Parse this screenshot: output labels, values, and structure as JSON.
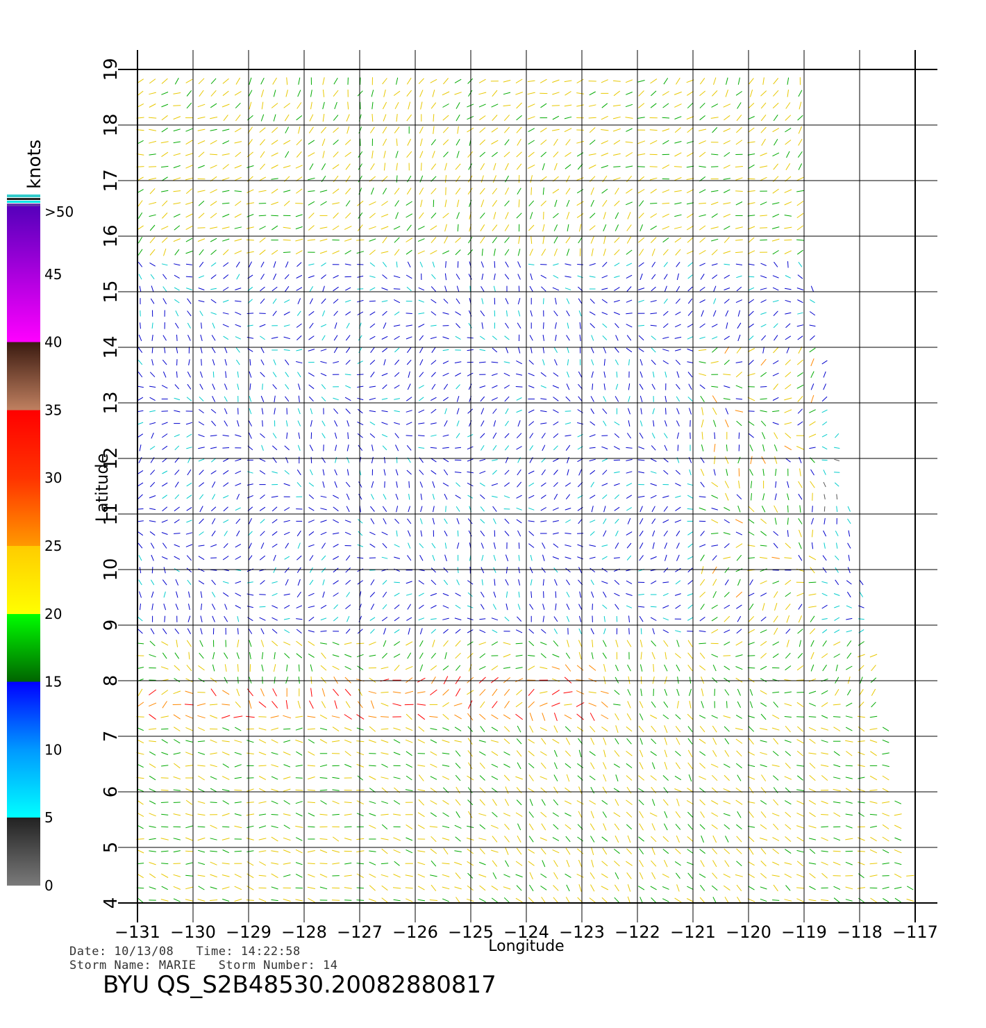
{
  "chart_data": {
    "type": "wind-vector-map",
    "xlabel": "Longitude",
    "ylabel": "Latitude",
    "xlim": [
      -131,
      -117
    ],
    "ylim": [
      4,
      19
    ],
    "x_ticks": [
      "-131",
      "-130",
      "-129",
      "-128",
      "-127",
      "-126",
      "-125",
      "-124",
      "-123",
      "-122",
      "-121",
      "-120",
      "-119",
      "-118",
      "-117"
    ],
    "y_ticks": [
      "4",
      "5",
      "6",
      "7",
      "8",
      "9",
      "10",
      "11",
      "12",
      "13",
      "14",
      "15",
      "16",
      "17",
      "18",
      "19"
    ],
    "grid": true,
    "colorbar": {
      "title": "knots",
      "top_label": ">50",
      "labels": [
        "0",
        "5",
        "10",
        "15",
        "20",
        "25",
        "30",
        "35",
        "40",
        "45"
      ],
      "bands": [
        {
          "from": 0,
          "to": 5,
          "colors": [
            "#7a7a7a",
            "#222222"
          ]
        },
        {
          "from": 5,
          "to": 10,
          "colors": [
            "#00ffff",
            "#0099ff"
          ]
        },
        {
          "from": 10,
          "to": 15,
          "colors": [
            "#0099ff",
            "#0000ff"
          ]
        },
        {
          "from": 15,
          "to": 20,
          "colors": [
            "#006400",
            "#00ff00"
          ]
        },
        {
          "from": 20,
          "to": 25,
          "colors": [
            "#ffff00",
            "#ffcc00"
          ]
        },
        {
          "from": 25,
          "to": 30,
          "colors": [
            "#ff9900",
            "#ff3300"
          ]
        },
        {
          "from": 30,
          "to": 35,
          "colors": [
            "#ff3300",
            "#ff0000"
          ]
        },
        {
          "from": 35,
          "to": 40,
          "colors": [
            "#c08060",
            "#3a1a10"
          ]
        },
        {
          "from": 40,
          "to": 50,
          "colors": [
            "#ff00ff",
            "#5500bb"
          ]
        }
      ]
    },
    "wind_speed_colors": {
      "slow": "#555555",
      "light": "#00cccc",
      "moderate": "#0000cc",
      "fresh": "#00aa00",
      "strong": "#e8c800",
      "gale": "#ff8800",
      "storm": "#ff0000"
    }
  },
  "info": {
    "date_line": "Date: 10/13/08   Time: 14:22:58",
    "storm_line": "Storm Name: MARIE   Storm Number: 14",
    "product_id": "BYU QS_S2B48530.20082880817"
  }
}
